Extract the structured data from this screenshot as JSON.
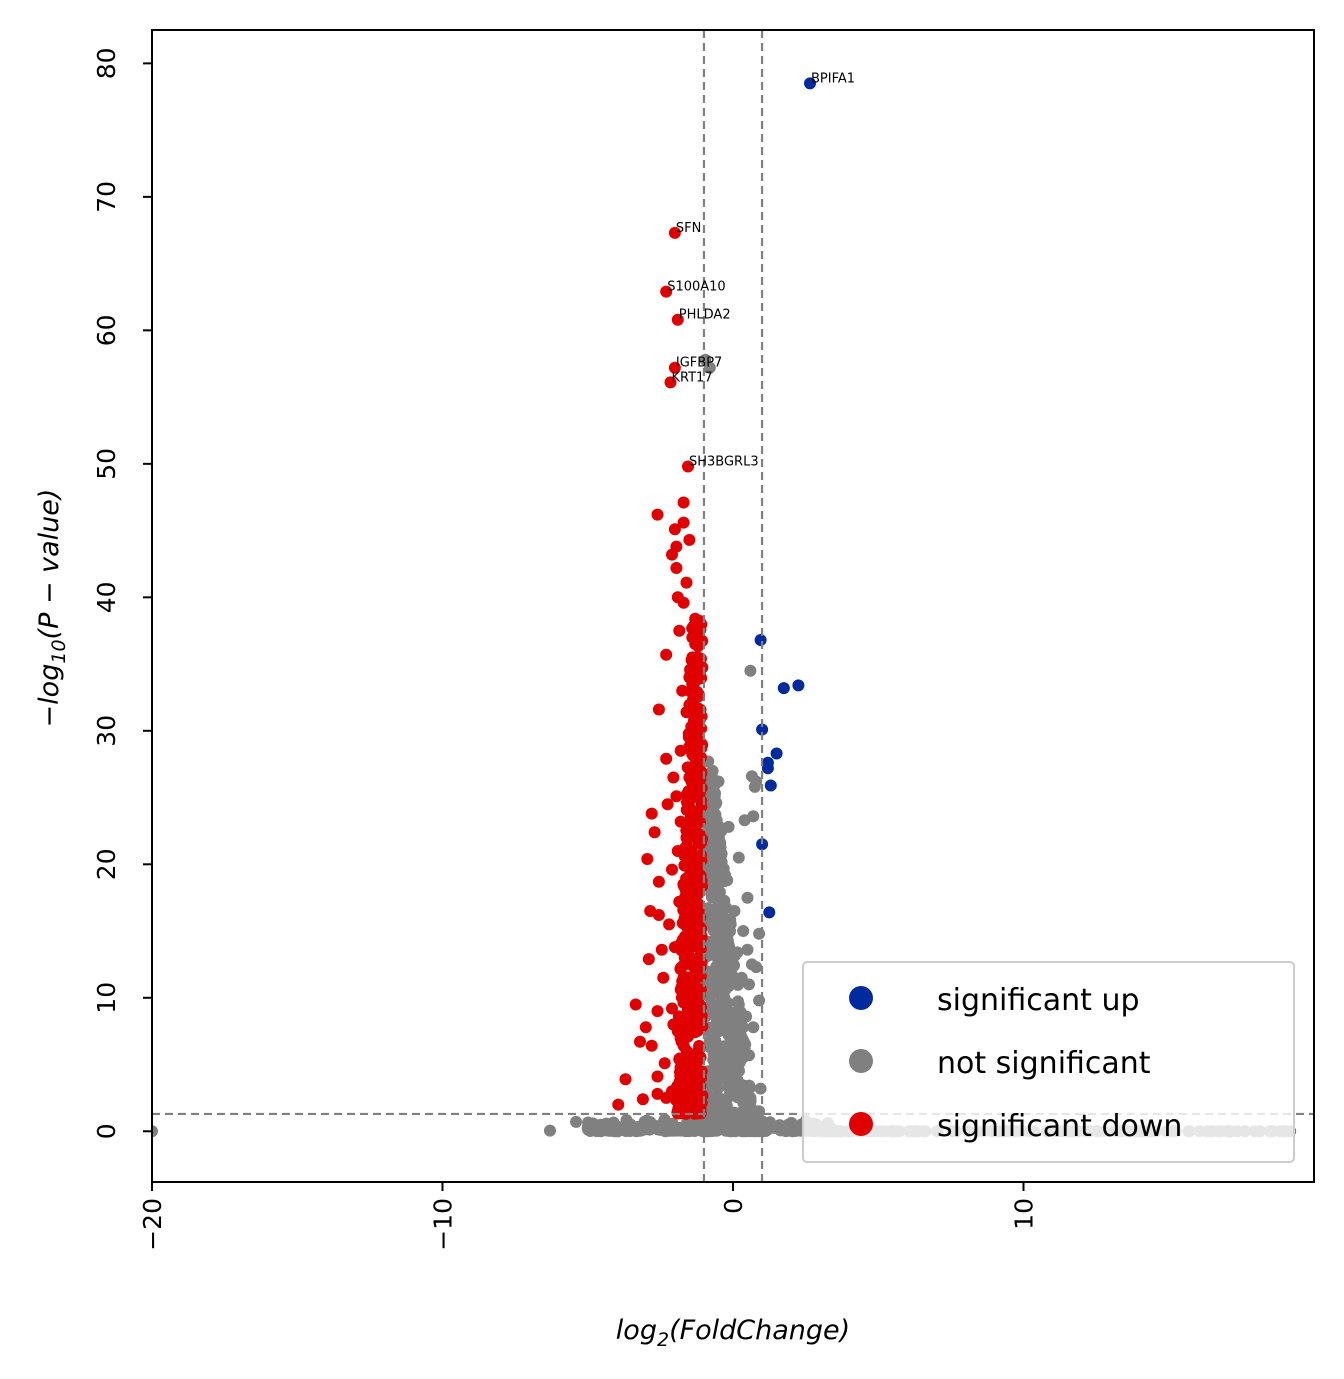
{
  "chart_data": {
    "type": "scatter",
    "xlabel_main": "log",
    "xlabel_sub": "2",
    "xlabel_rest": "(FoldChange)",
    "ylabel_main": "−log",
    "ylabel_sub": "10",
    "ylabel_rest": "(P − value)",
    "xlim": [
      -20,
      20
    ],
    "ylim": [
      -3.8,
      82.5
    ],
    "xticks": [
      -20,
      -10,
      0,
      10
    ],
    "xtick_labels": [
      "−20",
      "−10",
      "0",
      "10"
    ],
    "yticks": [
      0,
      10,
      20,
      30,
      40,
      50,
      60,
      70,
      80
    ],
    "ytick_labels": [
      "0",
      "10",
      "20",
      "30",
      "40",
      "50",
      "60",
      "70",
      "80"
    ],
    "thresholds": {
      "x": [
        -1,
        1
      ],
      "y": 1.3
    },
    "grid": false,
    "legend_position": "lower-right",
    "colors": {
      "up": "#002a9e",
      "ns": "#808080",
      "down": "#e00000",
      "threshold": "#808080"
    },
    "series": [
      {
        "name": "significant up",
        "key": "up",
        "points": [
          [
            2.65,
            78.5
          ],
          [
            0.95,
            36.8
          ],
          [
            2.25,
            33.4
          ],
          [
            1.75,
            33.2
          ],
          [
            1.0,
            30.1
          ],
          [
            1.5,
            28.3
          ],
          [
            1.2,
            27.6
          ],
          [
            1.2,
            27.2
          ],
          [
            1.3,
            25.9
          ],
          [
            1.0,
            21.5
          ],
          [
            1.25,
            16.4
          ]
        ]
      },
      {
        "name": "not significant",
        "key": "ns",
        "points": [
          [
            -20,
            0
          ],
          [
            -6.3,
            0.05
          ],
          [
            -5.4,
            0.7
          ],
          [
            -5.0,
            0.3
          ],
          [
            -4.6,
            0.15
          ],
          [
            -4.2,
            0.2
          ],
          [
            -3.8,
            0.1
          ],
          [
            -3.5,
            0.2
          ],
          [
            -3.0,
            0.15
          ],
          [
            -2.5,
            0.1
          ],
          [
            -0.95,
            57.8
          ],
          [
            -0.8,
            57.2
          ],
          [
            0.6,
            34.5
          ],
          [
            0.65,
            26.6
          ],
          [
            0.8,
            26.2
          ],
          [
            0.75,
            25.8
          ],
          [
            0.4,
            23.3
          ],
          [
            0.7,
            23.6
          ],
          [
            0.5,
            17.5
          ],
          [
            0.9,
            14.8
          ],
          [
            0.35,
            15.0
          ],
          [
            0.5,
            13.6
          ],
          [
            0.65,
            12.5
          ],
          [
            0.8,
            12.3
          ],
          [
            0.15,
            13.4
          ],
          [
            0.55,
            11.0
          ],
          [
            0.9,
            9.8
          ],
          [
            0.2,
            9.5
          ],
          [
            0.45,
            8.6
          ],
          [
            0.7,
            7.8
          ],
          [
            0.3,
            6.4
          ],
          [
            0.55,
            5.7
          ],
          [
            0.1,
            4.0
          ],
          [
            0.35,
            3.4
          ],
          [
            -0.5,
            26.2
          ],
          [
            -0.6,
            24.5
          ],
          [
            -0.4,
            22.5
          ],
          [
            -0.7,
            21.2
          ],
          [
            -0.85,
            27.7
          ],
          [
            -0.5,
            20.0
          ],
          [
            -0.2,
            18.8
          ],
          [
            -0.75,
            17.8
          ],
          [
            -0.6,
            15.5
          ],
          [
            -0.45,
            12.8
          ],
          [
            -0.7,
            11.4
          ],
          [
            -0.3,
            10.0
          ],
          [
            -0.55,
            8.6
          ],
          [
            -0.8,
            6.8
          ],
          [
            -0.35,
            5.2
          ],
          [
            -0.6,
            3.6
          ],
          [
            -0.4,
            2.4
          ],
          [
            -0.2,
            1.2
          ],
          [
            0.2,
            0.9
          ],
          [
            -0.85,
            14.2
          ],
          [
            -0.85,
            9.3
          ],
          [
            -0.85,
            4.5
          ],
          [
            -0.15,
            7.2
          ],
          [
            0.05,
            16.5
          ],
          [
            -0.15,
            22.8
          ],
          [
            0.2,
            20.5
          ],
          [
            -0.3,
            16.0
          ],
          [
            0.3,
            11.5
          ],
          [
            0.1,
            7.0
          ],
          [
            -0.6,
            6.0
          ],
          [
            -0.45,
            1.6
          ],
          [
            0.6,
            2.5
          ],
          [
            0.95,
            3.2
          ],
          [
            0.9,
            1.5
          ],
          [
            1.5,
            0.3
          ],
          [
            2.0,
            0.1
          ],
          [
            2.5,
            0.05
          ],
          [
            3.0,
            0.1
          ]
        ]
      },
      {
        "name": "significant down",
        "key": "down",
        "points": [
          [
            -2.0,
            67.3
          ],
          [
            -2.3,
            62.9
          ],
          [
            -1.9,
            60.8
          ],
          [
            -2.0,
            57.2
          ],
          [
            -2.15,
            56.1
          ],
          [
            -1.55,
            49.8
          ],
          [
            -1.7,
            47.1
          ],
          [
            -2.6,
            46.2
          ],
          [
            -1.7,
            45.6
          ],
          [
            -1.5,
            44.3
          ],
          [
            -2.0,
            45.1
          ],
          [
            -1.95,
            43.8
          ],
          [
            -2.1,
            43.2
          ],
          [
            -1.95,
            42.2
          ],
          [
            -1.6,
            41.1
          ],
          [
            -1.9,
            40.0
          ],
          [
            -1.7,
            39.6
          ],
          [
            -1.3,
            38.4
          ],
          [
            -2.3,
            35.7
          ],
          [
            -1.4,
            35.5
          ],
          [
            -1.5,
            34.0
          ],
          [
            -2.55,
            31.6
          ],
          [
            -1.6,
            31.4
          ],
          [
            -2.3,
            27.9
          ],
          [
            -1.5,
            26.5
          ],
          [
            -1.95,
            25.1
          ],
          [
            -2.8,
            23.8
          ],
          [
            -2.7,
            22.4
          ],
          [
            -1.6,
            22.0
          ],
          [
            -1.9,
            21.0
          ],
          [
            -2.95,
            20.4
          ],
          [
            -2.55,
            18.7
          ],
          [
            -2.85,
            16.5
          ],
          [
            -2.55,
            16.2
          ],
          [
            -2.2,
            15.5
          ],
          [
            -2.45,
            13.6
          ],
          [
            -2.9,
            12.9
          ],
          [
            -1.7,
            11.5
          ],
          [
            -3.35,
            9.5
          ],
          [
            -2.1,
            9.2
          ],
          [
            -3.0,
            7.8
          ],
          [
            -3.2,
            6.7
          ],
          [
            -2.8,
            6.4
          ],
          [
            -2.35,
            5.1
          ],
          [
            -3.7,
            3.9
          ],
          [
            -2.6,
            4.1
          ],
          [
            -3.95,
            2.0
          ],
          [
            -2.3,
            2.5
          ],
          [
            -1.3,
            36.5
          ],
          [
            -1.1,
            35.4
          ],
          [
            -1.4,
            33.5
          ],
          [
            -1.2,
            30.3
          ],
          [
            -1.5,
            29.7
          ],
          [
            -1.1,
            28.0
          ],
          [
            -1.35,
            26.9
          ],
          [
            -1.6,
            25.2
          ],
          [
            -1.2,
            24.0
          ],
          [
            -1.45,
            22.8
          ],
          [
            -1.1,
            21.6
          ],
          [
            -1.3,
            20.0
          ],
          [
            -1.55,
            19.0
          ],
          [
            -1.2,
            17.8
          ],
          [
            -1.4,
            16.4
          ],
          [
            -1.1,
            15.2
          ],
          [
            -1.3,
            14.0
          ],
          [
            -1.5,
            12.8
          ],
          [
            -1.2,
            11.6
          ],
          [
            -1.45,
            10.4
          ],
          [
            -1.1,
            9.3
          ],
          [
            -1.3,
            8.2
          ],
          [
            -1.55,
            7.1
          ],
          [
            -1.2,
            6.0
          ],
          [
            -1.4,
            5.0
          ],
          [
            -1.1,
            4.0
          ],
          [
            -1.3,
            3.1
          ],
          [
            -1.5,
            2.2
          ],
          [
            -1.15,
            1.5
          ],
          [
            -1.8,
            28.5
          ],
          [
            -2.05,
            26.5
          ],
          [
            -1.8,
            23.2
          ],
          [
            -2.1,
            19.6
          ],
          [
            -1.85,
            17.2
          ],
          [
            -2.0,
            13.8
          ],
          [
            -1.8,
            10.6
          ],
          [
            -2.05,
            8.0
          ],
          [
            -1.85,
            5.4
          ],
          [
            -2.1,
            3.0
          ],
          [
            -1.7,
            2.0
          ],
          [
            -1.75,
            33.0
          ],
          [
            -1.85,
            37.5
          ],
          [
            -2.25,
            24.5
          ],
          [
            -2.4,
            11.5
          ],
          [
            -2.6,
            9.0
          ],
          [
            -1.9,
            7.5
          ],
          [
            -2.6,
            2.8
          ],
          [
            -3.1,
            2.4
          ]
        ]
      }
    ],
    "annotations": [
      {
        "text": "BPIFA1",
        "x": 2.65,
        "y": 78.5
      },
      {
        "text": "SFN",
        "x": -2.0,
        "y": 67.3
      },
      {
        "text": "S100A10",
        "x": -2.3,
        "y": 62.9
      },
      {
        "text": "PHLDA2",
        "x": -1.9,
        "y": 60.8
      },
      {
        "text": "IGFBP7",
        "x": -2.0,
        "y": 57.2
      },
      {
        "text": "KRT17",
        "x": -2.15,
        "y": 56.1
      },
      {
        "text": "SH3BGRL3",
        "x": -1.55,
        "y": 49.8
      }
    ]
  }
}
